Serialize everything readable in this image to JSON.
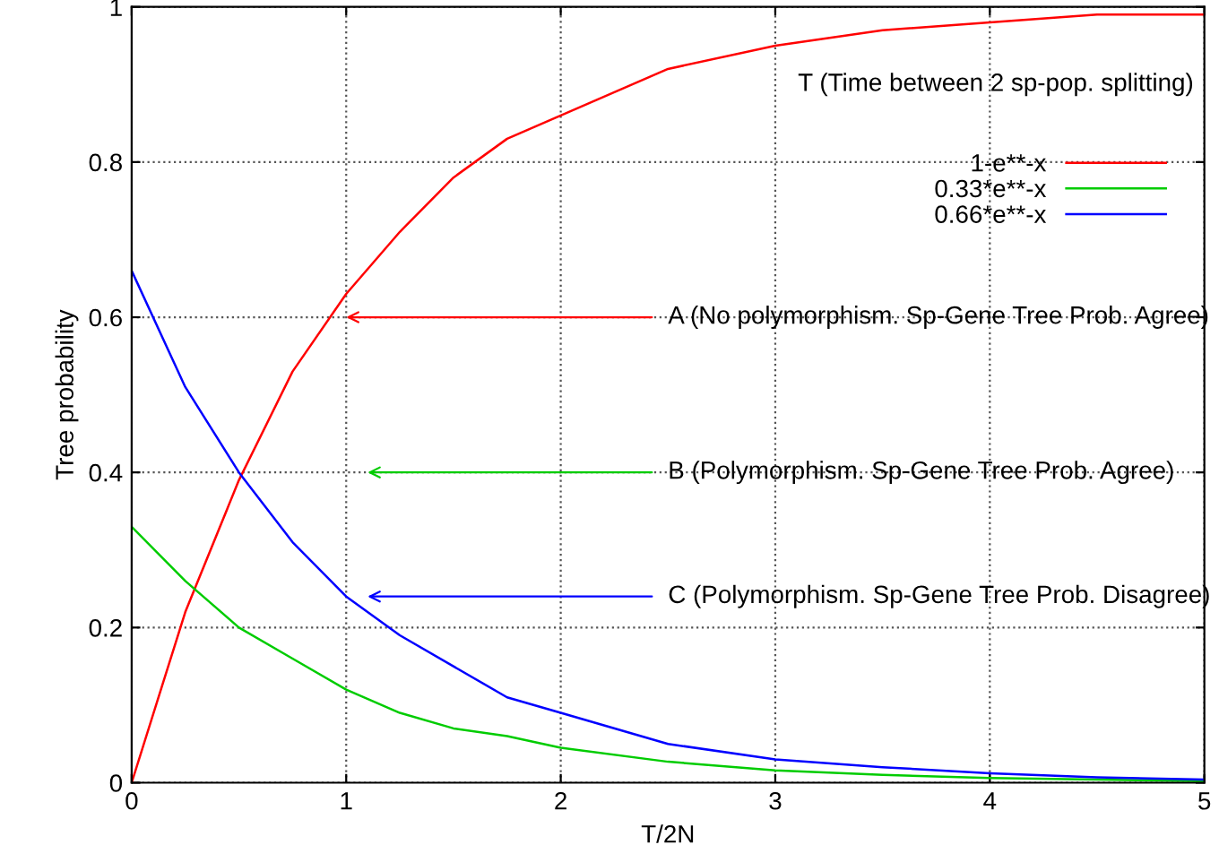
{
  "chart_data": {
    "type": "line",
    "xlabel": "T/2N",
    "ylabel": "Tree probability",
    "x": [
      0,
      0.25,
      0.5,
      0.75,
      1,
      1.25,
      1.5,
      1.75,
      2,
      2.5,
      3,
      3.5,
      4,
      4.5,
      5
    ],
    "series": [
      {
        "name": "1-e**-x",
        "color": "#ff0000",
        "values": [
          0,
          0.22,
          0.39,
          0.53,
          0.63,
          0.71,
          0.78,
          0.83,
          0.86,
          0.92,
          0.95,
          0.97,
          0.98,
          0.99,
          0.99
        ]
      },
      {
        "name": "0.33*e**-x",
        "color": "#00cc00",
        "values": [
          0.33,
          0.26,
          0.2,
          0.16,
          0.12,
          0.09,
          0.07,
          0.06,
          0.045,
          0.027,
          0.016,
          0.01,
          0.006,
          0.004,
          0.002
        ]
      },
      {
        "name": "0.66*e**-x",
        "color": "#0000ff",
        "values": [
          0.66,
          0.51,
          0.4,
          0.31,
          0.24,
          0.19,
          0.15,
          0.11,
          0.09,
          0.05,
          0.03,
          0.02,
          0.012,
          0.007,
          0.004
        ]
      }
    ],
    "xlim": [
      0,
      5
    ],
    "ylim": [
      0,
      1
    ],
    "xticks": [
      0,
      1,
      2,
      3,
      4,
      5
    ],
    "yticks": [
      0,
      0.2,
      0.4,
      0.6,
      0.8,
      1
    ],
    "grid": true,
    "legend": "top right",
    "marker": "none",
    "line_style": "solid",
    "annotations": [
      "T (Time between 2 sp-pop. splitting)",
      "A (No polymorphism. Sp-Gene Tree Prob. Agree)",
      "B (Polymorphism. Sp-Gene Tree Prob. Agree)",
      "C (Polymorphism. Sp-Gene Tree Prob. Disagree)"
    ]
  }
}
